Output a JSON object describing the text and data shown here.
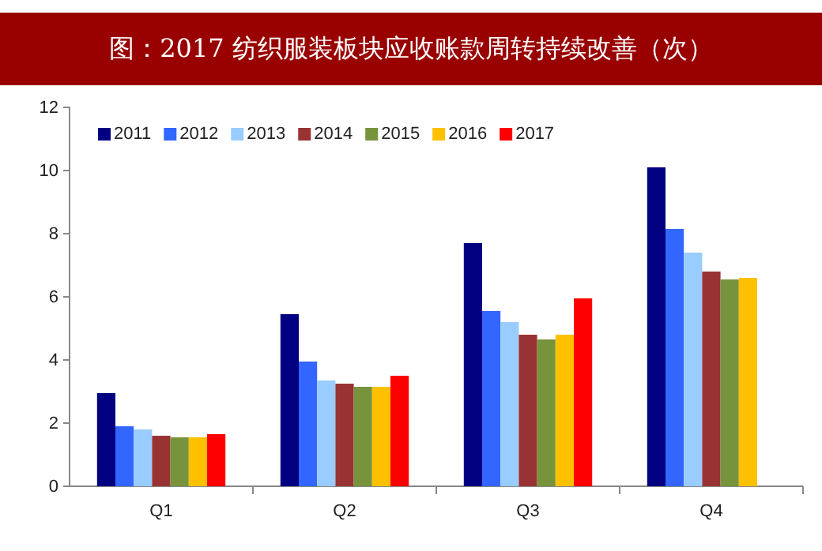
{
  "chart_data": {
    "type": "bar",
    "title": "图：2017 纺织服装板块应收账款周转持续改善（次）",
    "categories": [
      "Q1",
      "Q2",
      "Q3",
      "Q4"
    ],
    "ylim": [
      0,
      12
    ],
    "yticks": [
      0,
      2,
      4,
      6,
      8,
      10,
      12
    ],
    "legend": "top left",
    "series": [
      {
        "name": "2011",
        "color": "#000080",
        "values": [
          2.95,
          5.45,
          7.7,
          10.1
        ]
      },
      {
        "name": "2012",
        "color": "#3366ff",
        "values": [
          1.9,
          3.95,
          5.55,
          8.15
        ]
      },
      {
        "name": "2013",
        "color": "#99ccff",
        "values": [
          1.8,
          3.35,
          5.2,
          7.4
        ]
      },
      {
        "name": "2014",
        "color": "#993333",
        "values": [
          1.6,
          3.25,
          4.8,
          6.8
        ]
      },
      {
        "name": "2015",
        "color": "#77933c",
        "values": [
          1.55,
          3.15,
          4.65,
          6.55
        ]
      },
      {
        "name": "2016",
        "color": "#ffc000",
        "values": [
          1.55,
          3.15,
          4.8,
          6.6
        ]
      },
      {
        "name": "2017",
        "color": "#ff0000",
        "values": [
          1.65,
          3.5,
          5.95,
          null
        ]
      }
    ]
  }
}
